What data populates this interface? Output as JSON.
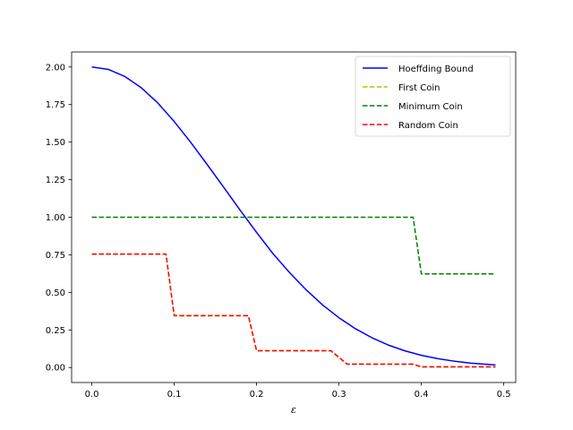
{
  "chart_data": {
    "type": "line",
    "xlabel": "ε",
    "ylabel": "",
    "title": "",
    "xlim": [
      -0.0245,
      0.5145
    ],
    "ylim": [
      -0.1,
      2.1
    ],
    "x_ticks": [
      0.0,
      0.1,
      0.2,
      0.3,
      0.4,
      0.5
    ],
    "x_tick_labels": [
      "0.0",
      "0.1",
      "0.2",
      "0.3",
      "0.4",
      "0.5"
    ],
    "y_ticks": [
      0.0,
      0.25,
      0.5,
      0.75,
      1.0,
      1.25,
      1.5,
      1.75,
      2.0
    ],
    "y_tick_labels": [
      "0.00",
      "0.25",
      "0.50",
      "0.75",
      "1.00",
      "1.25",
      "1.50",
      "1.75",
      "2.00"
    ],
    "grid": false,
    "legend_position": "top-right",
    "series": [
      {
        "name": "Hoeffding Bound",
        "color": "#0000ff",
        "style": "solid",
        "x": [
          0.0,
          0.02,
          0.04,
          0.06,
          0.08,
          0.1,
          0.12,
          0.14,
          0.16,
          0.18,
          0.2,
          0.22,
          0.24,
          0.26,
          0.28,
          0.3,
          0.32,
          0.34,
          0.36,
          0.38,
          0.4,
          0.42,
          0.44,
          0.46,
          0.49
        ],
        "y": [
          2.0,
          1.984,
          1.937,
          1.862,
          1.761,
          1.637,
          1.499,
          1.351,
          1.2,
          1.047,
          0.899,
          0.757,
          0.632,
          0.518,
          0.417,
          0.331,
          0.258,
          0.198,
          0.149,
          0.111,
          0.081,
          0.059,
          0.042,
          0.029,
          0.017
        ]
      },
      {
        "name": "First Coin",
        "color": "#bfbf00",
        "style": "dashed",
        "x": [
          0.0,
          0.09,
          0.1,
          0.19,
          0.2,
          0.29,
          0.31,
          0.39,
          0.4,
          0.49
        ],
        "y": [
          0.755,
          0.755,
          0.345,
          0.345,
          0.112,
          0.112,
          0.022,
          0.022,
          0.004,
          0.004
        ]
      },
      {
        "name": "Minimum Coin",
        "color": "#008000",
        "style": "dashed",
        "x": [
          0.0,
          0.39,
          0.4,
          0.49
        ],
        "y": [
          1.0,
          1.0,
          0.623,
          0.623
        ]
      },
      {
        "name": "Random Coin",
        "color": "#ff0000",
        "style": "dashed",
        "x": [
          0.0,
          0.09,
          0.1,
          0.19,
          0.2,
          0.29,
          0.31,
          0.39,
          0.4,
          0.49
        ],
        "y": [
          0.755,
          0.755,
          0.345,
          0.345,
          0.112,
          0.112,
          0.022,
          0.022,
          0.004,
          0.004
        ]
      }
    ]
  }
}
